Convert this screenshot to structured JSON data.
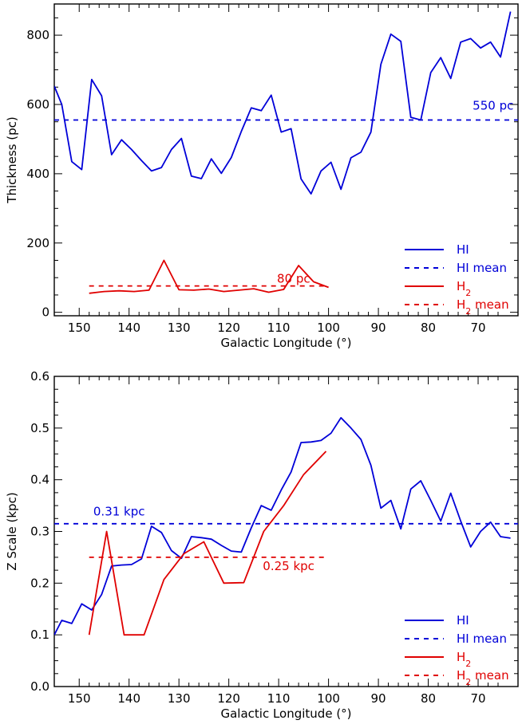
{
  "chart_data": [
    {
      "type": "line",
      "title": "",
      "xlabel": "Galactic Longitude (°)",
      "ylabel": "Thickness (pc)",
      "xlim": [
        155,
        62
      ],
      "ylim": [
        -10,
        890
      ],
      "x_ticks": [
        150,
        140,
        130,
        120,
        110,
        100,
        90,
        80,
        70
      ],
      "y_ticks": [
        0,
        200,
        400,
        600,
        800
      ],
      "colors": {
        "hi": "#0000d8",
        "h2": "#e00000"
      },
      "series": [
        {
          "name": "HI",
          "style": "solid",
          "color": "#0000d8",
          "x": [
            155,
            153.5,
            151.5,
            149.5,
            147.5,
            145.5,
            143.5,
            141.5,
            139.5,
            137.5,
            135.5,
            133.5,
            131.5,
            129.5,
            127.5,
            125.5,
            123.5,
            121.5,
            119.5,
            117.5,
            115.5,
            113.5,
            111.5,
            109.5,
            107.5,
            105.5,
            103.5,
            101.5,
            99.5,
            97.5,
            95.5,
            93.5,
            91.5,
            89.5,
            87.5,
            85.5,
            83.5,
            81.5,
            79.5,
            77.5,
            75.5,
            73.5,
            71.5,
            69.5,
            67.5,
            65.5,
            63.5
          ],
          "values": [
            653,
            600,
            435,
            412,
            672,
            625,
            455,
            498,
            470,
            438,
            408,
            418,
            470,
            502,
            393,
            386,
            443,
            401,
            447,
            522,
            590,
            582,
            627,
            520,
            530,
            385,
            342,
            408,
            433,
            355,
            446,
            462,
            520,
            716,
            803,
            782,
            563,
            555,
            692,
            735,
            675,
            780,
            790,
            763,
            780,
            737,
            868
          ]
        },
        {
          "name": "HI mean",
          "style": "dashed",
          "color": "#0000d8",
          "x": [
            155,
            62
          ],
          "values": [
            555,
            555
          ]
        },
        {
          "name": "H2",
          "style": "solid",
          "color": "#e00000",
          "x": [
            148,
            145,
            142,
            139,
            136,
            133,
            130,
            127,
            124,
            121,
            118,
            115,
            112,
            109,
            106,
            103,
            100
          ],
          "values": [
            55,
            60,
            62,
            60,
            64,
            150,
            65,
            64,
            67,
            60,
            64,
            68,
            58,
            66,
            135,
            88,
            72
          ]
        },
        {
          "name": "H2 mean",
          "style": "dashed",
          "color": "#e00000",
          "x": [
            148,
            100
          ],
          "values": [
            76,
            76
          ]
        }
      ],
      "legend": {
        "position": "bottom-right",
        "entries": [
          {
            "label": "HI",
            "sub": "",
            "suffix": "",
            "color": "#0000d8",
            "style": "solid"
          },
          {
            "label": "HI mean",
            "sub": "",
            "suffix": "",
            "color": "#0000d8",
            "style": "dashed"
          },
          {
            "label": "H",
            "sub": "2",
            "suffix": "",
            "color": "#e00000",
            "style": "solid"
          },
          {
            "label": "H",
            "sub": "2",
            "suffix": " mean",
            "color": "#e00000",
            "style": "dashed"
          }
        ]
      },
      "annotations": [
        {
          "text": "550 pc",
          "x": 67,
          "y": 585,
          "color": "#0000d8"
        },
        {
          "text": "80 pc",
          "x": 107,
          "y": 85,
          "color": "#e00000"
        }
      ]
    },
    {
      "type": "line",
      "title": "",
      "xlabel": "Galactic Longitude (°)",
      "ylabel": "Z Scale (kpc)",
      "xlim": [
        155,
        62
      ],
      "ylim": [
        0,
        0.6
      ],
      "x_ticks": [
        150,
        140,
        130,
        120,
        110,
        100,
        90,
        80,
        70
      ],
      "y_ticks": [
        0.0,
        0.1,
        0.2,
        0.3,
        0.4,
        0.5,
        0.6
      ],
      "y_tick_labels": [
        "0.0",
        "0.1",
        "0.2",
        "0.3",
        "0.4",
        "0.5",
        "0.6"
      ],
      "colors": {
        "hi": "#0000d8",
        "h2": "#e00000"
      },
      "series": [
        {
          "name": "HI",
          "style": "solid",
          "color": "#0000d8",
          "x": [
            155,
            153.5,
            151.5,
            149.5,
            147.5,
            145.5,
            143.5,
            141.5,
            139.5,
            137.5,
            135.5,
            133.5,
            131.5,
            129.5,
            127.5,
            125.5,
            123.5,
            121.5,
            119.5,
            117.5,
            115.5,
            113.5,
            111.5,
            109.5,
            107.5,
            105.5,
            103.5,
            101.5,
            99.5,
            97.5,
            95.5,
            93.5,
            91.5,
            89.5,
            87.5,
            85.5,
            83.5,
            81.5,
            79.5,
            77.5,
            75.5,
            73.5,
            71.5,
            69.5,
            67.5,
            65.5,
            63.5
          ],
          "values": [
            0.1,
            0.128,
            0.122,
            0.16,
            0.148,
            0.178,
            0.233,
            0.235,
            0.236,
            0.247,
            0.31,
            0.298,
            0.263,
            0.248,
            0.29,
            0.288,
            0.285,
            0.273,
            0.262,
            0.26,
            0.307,
            0.35,
            0.341,
            0.38,
            0.415,
            0.472,
            0.473,
            0.476,
            0.49,
            0.52,
            0.5,
            0.478,
            0.428,
            0.345,
            0.36,
            0.305,
            0.382,
            0.398,
            0.36,
            0.32,
            0.374,
            0.32,
            0.27,
            0.3,
            0.318,
            0.29,
            0.287
          ]
        },
        {
          "name": "HI mean",
          "style": "dashed",
          "color": "#0000d8",
          "x": [
            155,
            62
          ],
          "values": [
            0.315,
            0.315
          ]
        },
        {
          "name": "H2",
          "style": "solid",
          "color": "#e00000",
          "x": [
            148,
            144.5,
            141,
            137,
            133,
            129,
            125,
            121,
            117,
            113,
            109,
            105,
            100.5
          ],
          "values": [
            0.1,
            0.3,
            0.1,
            0.1,
            0.207,
            0.257,
            0.28,
            0.2,
            0.201,
            0.3,
            0.35,
            0.41,
            0.455
          ]
        },
        {
          "name": "H2 mean",
          "style": "dashed",
          "color": "#e00000",
          "x": [
            148,
            100
          ],
          "values": [
            0.25,
            0.25
          ]
        }
      ],
      "legend": {
        "position": "bottom-right",
        "entries": [
          {
            "label": "HI",
            "sub": "",
            "suffix": "",
            "color": "#0000d8",
            "style": "solid"
          },
          {
            "label": "HI mean",
            "sub": "",
            "suffix": "",
            "color": "#0000d8",
            "style": "dashed"
          },
          {
            "label": "H",
            "sub": "2",
            "suffix": "",
            "color": "#e00000",
            "style": "solid"
          },
          {
            "label": "H",
            "sub": "2",
            "suffix": " mean",
            "color": "#e00000",
            "style": "dashed"
          }
        ]
      },
      "annotations": [
        {
          "text": "0.31 kpc",
          "x": 142,
          "y": 0.331,
          "color": "#0000d8"
        },
        {
          "text": "0.25 kpc",
          "x": 108,
          "y": 0.225,
          "color": "#e00000"
        }
      ]
    }
  ]
}
